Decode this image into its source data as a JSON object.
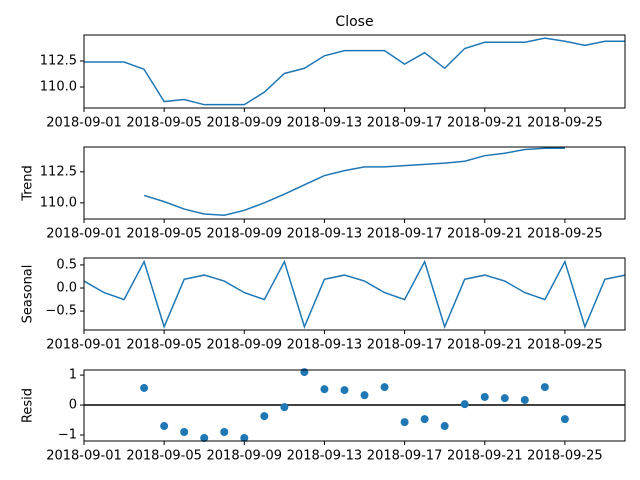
{
  "chart_data": [
    {
      "type": "line",
      "title": "Close",
      "color": "#1f77b4",
      "x": [
        "2018-09-01",
        "2018-09-02",
        "2018-09-03",
        "2018-09-04",
        "2018-09-05",
        "2018-09-06",
        "2018-09-07",
        "2018-09-08",
        "2018-09-09",
        "2018-09-10",
        "2018-09-11",
        "2018-09-12",
        "2018-09-13",
        "2018-09-14",
        "2018-09-15",
        "2018-09-16",
        "2018-09-17",
        "2018-09-18",
        "2018-09-19",
        "2018-09-20",
        "2018-09-21",
        "2018-09-22",
        "2018-09-23",
        "2018-09-24",
        "2018-09-25",
        "2018-09-26",
        "2018-09-27",
        "2018-09-28"
      ],
      "values": [
        112.4,
        112.4,
        112.4,
        111.7,
        108.6,
        108.8,
        108.3,
        108.3,
        108.3,
        109.5,
        111.3,
        111.8,
        113.0,
        113.5,
        113.5,
        113.5,
        112.2,
        113.3,
        111.8,
        113.7,
        114.3,
        114.3,
        114.3,
        114.7,
        114.4,
        114.0,
        114.4,
        114.4
      ],
      "xlim": [
        "2018-09-01",
        "2018-09-28"
      ],
      "xticks": [
        "2018-09-01",
        "2018-09-05",
        "2018-09-09",
        "2018-09-13",
        "2018-09-17",
        "2018-09-21",
        "2018-09-25"
      ],
      "ylim": [
        107.98,
        115.0
      ],
      "yticks": [
        {
          "value": 110,
          "label": "110.0"
        },
        112.5
      ]
    },
    {
      "type": "line",
      "ylabel": "Trend",
      "color": "#1f77b4",
      "x": [
        "2018-09-01",
        "2018-09-02",
        "2018-09-03",
        "2018-09-04",
        "2018-09-05",
        "2018-09-06",
        "2018-09-07",
        "2018-09-08",
        "2018-09-09",
        "2018-09-10",
        "2018-09-11",
        "2018-09-12",
        "2018-09-13",
        "2018-09-14",
        "2018-09-15",
        "2018-09-16",
        "2018-09-17",
        "2018-09-18",
        "2018-09-19",
        "2018-09-20",
        "2018-09-21",
        "2018-09-22",
        "2018-09-23",
        "2018-09-24",
        "2018-09-25",
        "2018-09-26",
        "2018-09-27",
        "2018-09-28"
      ],
      "values": [
        null,
        null,
        null,
        110.6,
        110.1,
        109.5,
        109.1,
        109.0,
        109.4,
        110.0,
        110.7,
        111.45,
        112.2,
        112.6,
        112.9,
        112.9,
        113.0,
        113.1,
        113.2,
        113.35,
        113.8,
        114.0,
        114.3,
        114.4,
        114.4,
        null,
        null,
        null
      ],
      "xlim": [
        "2018-09-01",
        "2018-09-28"
      ],
      "xticks": [
        "2018-09-01",
        "2018-09-05",
        "2018-09-09",
        "2018-09-13",
        "2018-09-17",
        "2018-09-21",
        "2018-09-25"
      ],
      "ylim": [
        108.7,
        114.5
      ],
      "yticks": [
        {
          "value": 110,
          "label": "110.0"
        },
        112.5
      ]
    },
    {
      "type": "line",
      "ylabel": "Seasonal",
      "color": "#1f77b4",
      "x": [
        "2018-09-01",
        "2018-09-02",
        "2018-09-03",
        "2018-09-04",
        "2018-09-05",
        "2018-09-06",
        "2018-09-07",
        "2018-09-08",
        "2018-09-09",
        "2018-09-10",
        "2018-09-11",
        "2018-09-12",
        "2018-09-13",
        "2018-09-14",
        "2018-09-15",
        "2018-09-16",
        "2018-09-17",
        "2018-09-18",
        "2018-09-19",
        "2018-09-20",
        "2018-09-21",
        "2018-09-22",
        "2018-09-23",
        "2018-09-24",
        "2018-09-25",
        "2018-09-26",
        "2018-09-27",
        "2018-09-28"
      ],
      "values": [
        0.15,
        -0.1,
        -0.25,
        0.57,
        -0.84,
        0.19,
        0.28,
        0.15,
        -0.1,
        -0.25,
        0.57,
        -0.84,
        0.19,
        0.28,
        0.15,
        -0.1,
        -0.25,
        0.57,
        -0.84,
        0.19,
        0.28,
        0.15,
        -0.1,
        -0.25,
        0.57,
        -0.84,
        0.19,
        0.28
      ],
      "xlim": [
        "2018-09-01",
        "2018-09-28"
      ],
      "xticks": [
        "2018-09-01",
        "2018-09-05",
        "2018-09-09",
        "2018-09-13",
        "2018-09-17",
        "2018-09-21",
        "2018-09-25"
      ],
      "ylim": [
        -0.91,
        0.65
      ],
      "yticks": [
        {
          "value": -0.5,
          "label": "−0.5"
        },
        {
          "value": 0,
          "label": "0.0"
        },
        0.5
      ]
    },
    {
      "type": "scatter",
      "ylabel": "Resid",
      "color": "#1f77b4",
      "hline": 0,
      "x": [
        "2018-09-01",
        "2018-09-02",
        "2018-09-03",
        "2018-09-04",
        "2018-09-05",
        "2018-09-06",
        "2018-09-07",
        "2018-09-08",
        "2018-09-09",
        "2018-09-10",
        "2018-09-11",
        "2018-09-12",
        "2018-09-13",
        "2018-09-14",
        "2018-09-15",
        "2018-09-16",
        "2018-09-17",
        "2018-09-18",
        "2018-09-19",
        "2018-09-20",
        "2018-09-21",
        "2018-09-22",
        "2018-09-23",
        "2018-09-24",
        "2018-09-25",
        "2018-09-26",
        "2018-09-27",
        "2018-09-28"
      ],
      "values": [
        null,
        null,
        null,
        0.57,
        -0.7,
        -0.9,
        -1.1,
        -0.9,
        -1.1,
        -0.37,
        -0.07,
        1.1,
        0.53,
        0.5,
        0.33,
        0.6,
        -0.57,
        -0.47,
        -0.7,
        0.03,
        0.27,
        0.23,
        0.17,
        0.6,
        -0.47,
        null,
        null,
        null
      ],
      "xlim": [
        "2018-09-01",
        "2018-09-28"
      ],
      "xticks": [
        "2018-09-01",
        "2018-09-05",
        "2018-09-09",
        "2018-09-13",
        "2018-09-17",
        "2018-09-21",
        "2018-09-25"
      ],
      "ylim": [
        -1.2,
        1.17
      ],
      "yticks": [
        {
          "value": -1,
          "label": "−1"
        },
        0,
        1
      ]
    }
  ]
}
